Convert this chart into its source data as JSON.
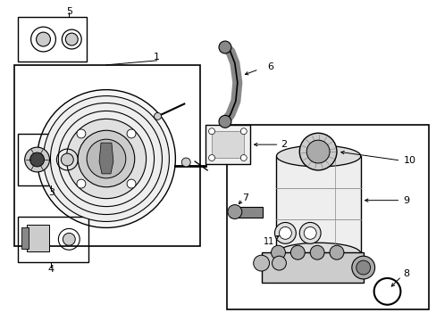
{
  "bg": "#ffffff",
  "lc": "#000000",
  "g1": "#cccccc",
  "g2": "#888888",
  "g3": "#444444"
}
